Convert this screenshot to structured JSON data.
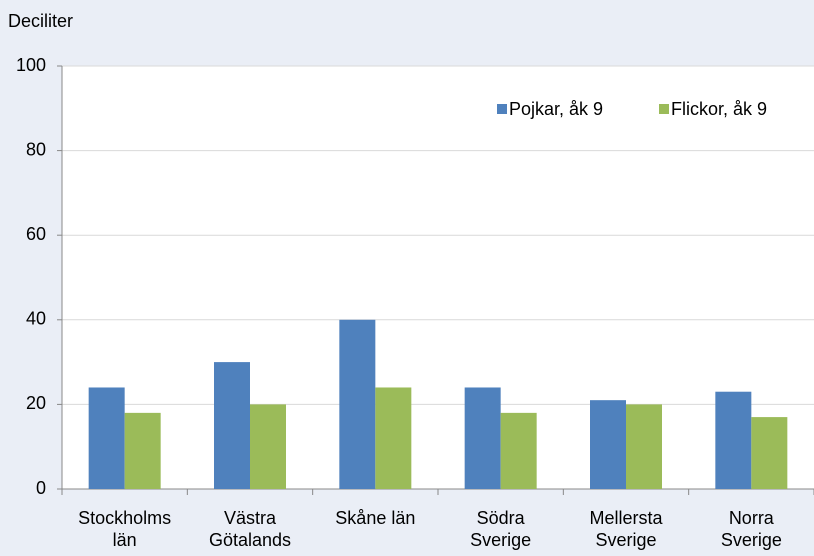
{
  "chart_data": {
    "type": "bar",
    "y_label": "Deciliter",
    "categories": [
      "Stockholms\nlän",
      "Västra\nGötalands",
      "Skåne län",
      "Södra\nSverige",
      "Mellersta\nSverige",
      "Norra\nSverige"
    ],
    "series": [
      {
        "name": "Pojkar, åk 9",
        "color": "#4f81bd",
        "values": [
          24,
          30,
          40,
          24,
          21,
          23
        ]
      },
      {
        "name": "Flickor, åk 9",
        "color": "#9bbb59",
        "values": [
          18,
          20,
          24,
          18,
          20,
          17
        ]
      }
    ],
    "ylim": [
      0,
      100
    ],
    "yticks": [
      0,
      20,
      40,
      60,
      80,
      100
    ],
    "grid": true,
    "legend": "top-right"
  }
}
